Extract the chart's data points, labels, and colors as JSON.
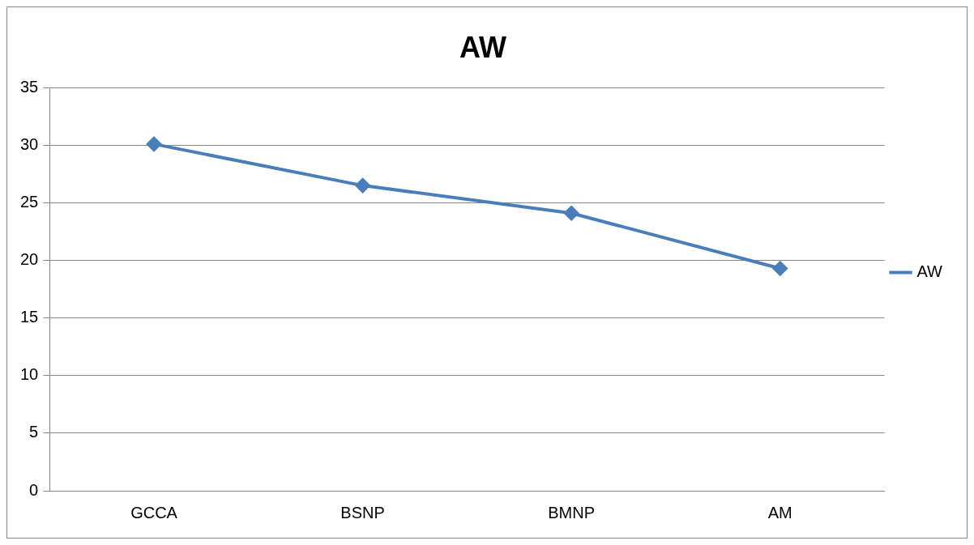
{
  "chart_data": {
    "type": "line",
    "title": "AW",
    "categories": [
      "GCCA",
      "BSNP",
      "BMNP",
      "AM"
    ],
    "series": [
      {
        "name": "AW",
        "color": "#4a7ebb",
        "values": [
          30.1,
          26.5,
          24.1,
          19.3
        ]
      }
    ],
    "ylim": [
      0,
      35
    ],
    "yticks": [
      0,
      5,
      10,
      15,
      20,
      25,
      30,
      35
    ],
    "grid": "y",
    "legend": "right",
    "marker": "diamond",
    "line_style": "solid"
  }
}
